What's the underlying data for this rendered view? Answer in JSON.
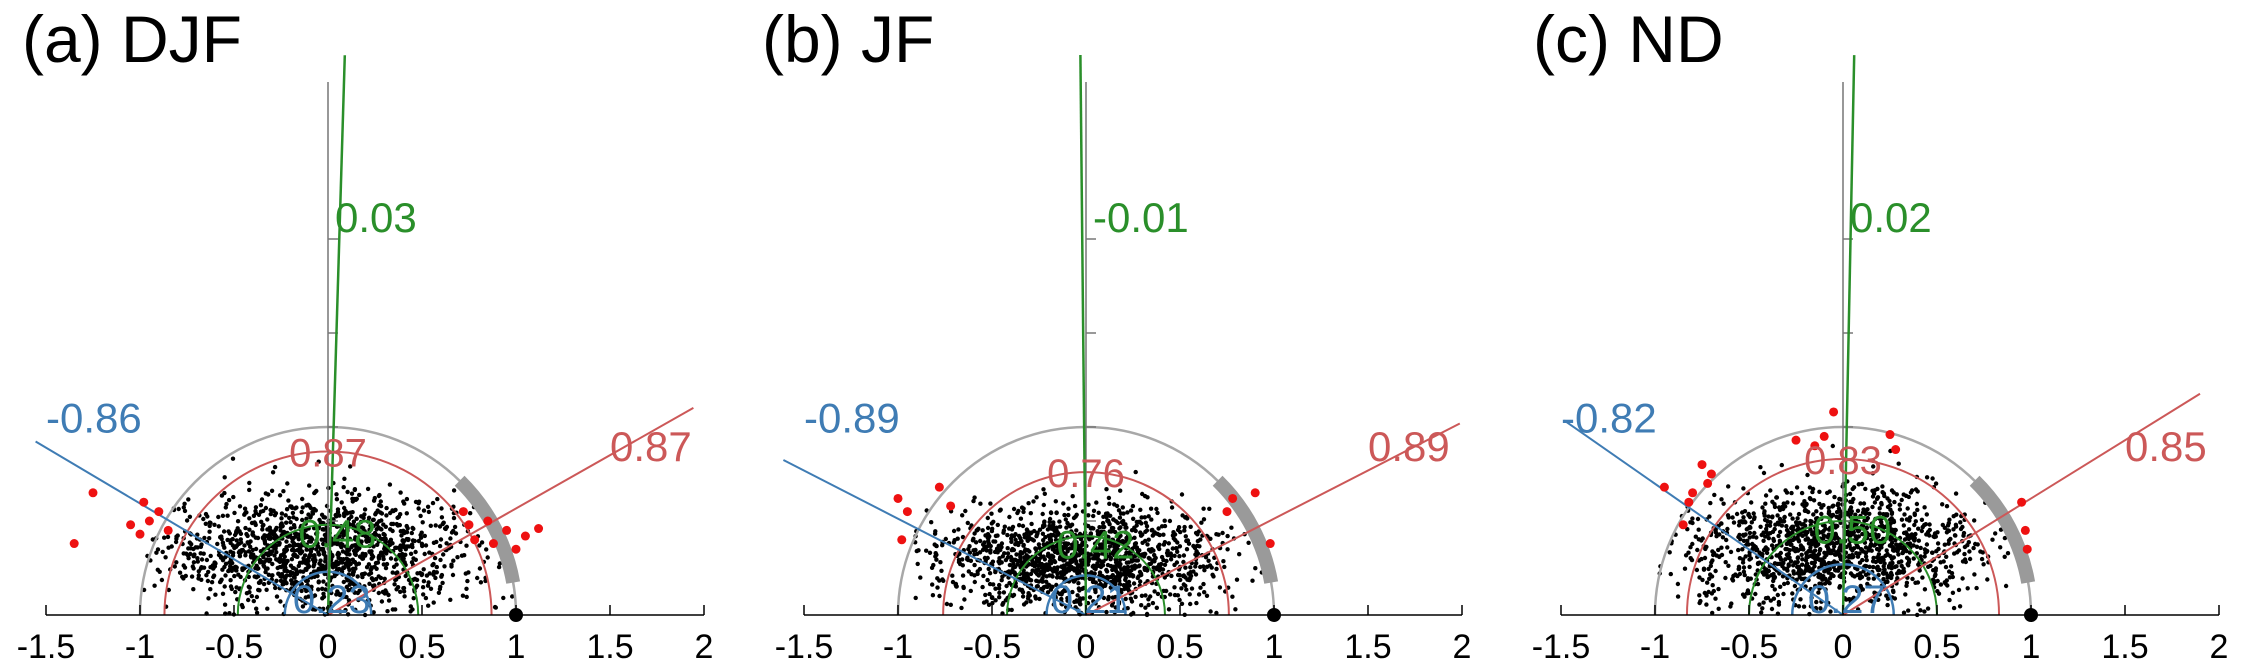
{
  "colors": {
    "green": "#2a8f2a",
    "red": "#cc5858",
    "blue": "#3f7cb4",
    "gray": "#9a9a9a",
    "unitArc": "#a8a8a8",
    "points": "#000000",
    "outliers": "#ee1111"
  },
  "chart_data": [
    {
      "type": "scatter",
      "title": "(a) DJF",
      "xlim": [
        -1.5,
        2
      ],
      "xticks": [
        "-1.5",
        "-1",
        "-0.5",
        "0",
        "0.5",
        "1",
        "1.5",
        "2"
      ],
      "green_corr": "0.03",
      "green_radius": "0.48",
      "red_corr": "0.87",
      "red_radius": "0.87",
      "blue_corr": "-0.86",
      "blue_radius": "0.23",
      "point_center": [
        -0.05,
        0.34
      ],
      "point_spread": [
        0.42,
        0.15
      ],
      "outliers": [
        [
          0.72,
          0.55
        ],
        [
          0.78,
          0.4
        ],
        [
          0.85,
          0.5
        ],
        [
          0.95,
          0.45
        ],
        [
          1.05,
          0.42
        ],
        [
          0.88,
          0.38
        ],
        [
          1.12,
          0.46
        ],
        [
          1.0,
          0.35
        ],
        [
          -0.95,
          0.5
        ],
        [
          -1.0,
          0.43
        ],
        [
          -1.05,
          0.48
        ],
        [
          -0.9,
          0.55
        ],
        [
          -1.25,
          0.65
        ],
        [
          -1.35,
          0.38
        ],
        [
          -0.98,
          0.6
        ],
        [
          -0.85,
          0.45
        ],
        [
          0.75,
          0.48
        ]
      ]
    },
    {
      "type": "scatter",
      "title": "(b) JF",
      "xlim": [
        -1.5,
        2
      ],
      "xticks": [
        "-1.5",
        "-1",
        "-0.5",
        "0",
        "0.5",
        "1",
        "1.5",
        "2"
      ],
      "green_corr": "-0.01",
      "green_radius": "0.42",
      "red_corr": "0.89",
      "red_radius": "0.76",
      "blue_corr": "-0.89",
      "blue_radius": "0.21",
      "point_center": [
        -0.05,
        0.3
      ],
      "point_spread": [
        0.4,
        0.14
      ],
      "outliers": [
        [
          0.78,
          0.62
        ],
        [
          0.9,
          0.65
        ],
        [
          0.75,
          0.55
        ],
        [
          0.98,
          0.38
        ],
        [
          -0.78,
          0.68
        ],
        [
          -1.0,
          0.62
        ],
        [
          -0.95,
          0.55
        ],
        [
          -0.98,
          0.4
        ],
        [
          -0.72,
          0.58
        ]
      ]
    },
    {
      "type": "scatter",
      "title": "(c) ND",
      "xlim": [
        -1.5,
        2
      ],
      "xticks": [
        "-1.5",
        "-1",
        "-0.5",
        "0",
        "0.5",
        "1",
        "1.5",
        "2"
      ],
      "green_corr": "0.02",
      "green_radius": "0.50",
      "red_corr": "0.85",
      "red_radius": "0.83",
      "blue_corr": "-0.82",
      "blue_radius": "0.27",
      "point_center": [
        -0.05,
        0.36
      ],
      "point_spread": [
        0.4,
        0.16
      ],
      "outliers": [
        [
          -0.05,
          1.08
        ],
        [
          -0.1,
          0.95
        ],
        [
          -0.15,
          0.9
        ],
        [
          -0.25,
          0.93
        ],
        [
          0.25,
          0.96
        ],
        [
          0.28,
          0.88
        ],
        [
          -0.7,
          0.75
        ],
        [
          -0.72,
          0.7
        ],
        [
          -0.75,
          0.8
        ],
        [
          -0.8,
          0.65
        ],
        [
          -0.82,
          0.6
        ],
        [
          -0.95,
          0.68
        ],
        [
          -0.85,
          0.48
        ],
        [
          0.95,
          0.6
        ],
        [
          0.97,
          0.45
        ],
        [
          0.98,
          0.35
        ]
      ]
    }
  ]
}
